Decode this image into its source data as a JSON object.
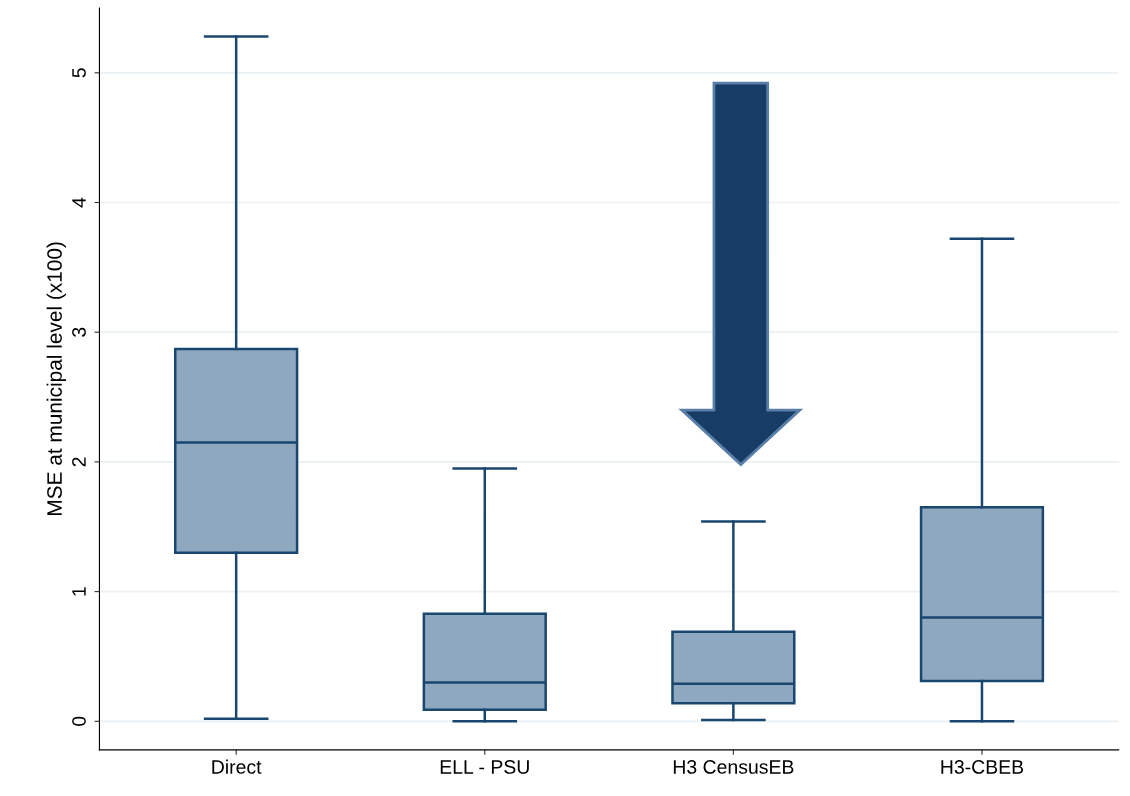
{
  "chart_data": {
    "type": "box",
    "ylabel": "MSE at municipal level (x100)",
    "categories": [
      "Direct",
      "ELL - PSU",
      "H3 CensusEB",
      "H3-CBEB"
    ],
    "boxes": [
      {
        "low": 0.02,
        "q1": 1.3,
        "median": 2.15,
        "q3": 2.87,
        "high": 5.28
      },
      {
        "low": 0.0,
        "q1": 0.09,
        "median": 0.3,
        "q3": 0.83,
        "high": 1.95
      },
      {
        "low": 0.01,
        "q1": 0.14,
        "median": 0.29,
        "q3": 0.69,
        "high": 1.54
      },
      {
        "low": 0.0,
        "q1": 0.31,
        "median": 0.8,
        "q3": 1.65,
        "high": 3.72
      }
    ],
    "color": "#8ea8bf",
    "ylim": [
      -0.22,
      5.5
    ],
    "yticks": [
      0,
      1,
      2,
      3,
      4,
      5
    ],
    "grid": "y"
  }
}
